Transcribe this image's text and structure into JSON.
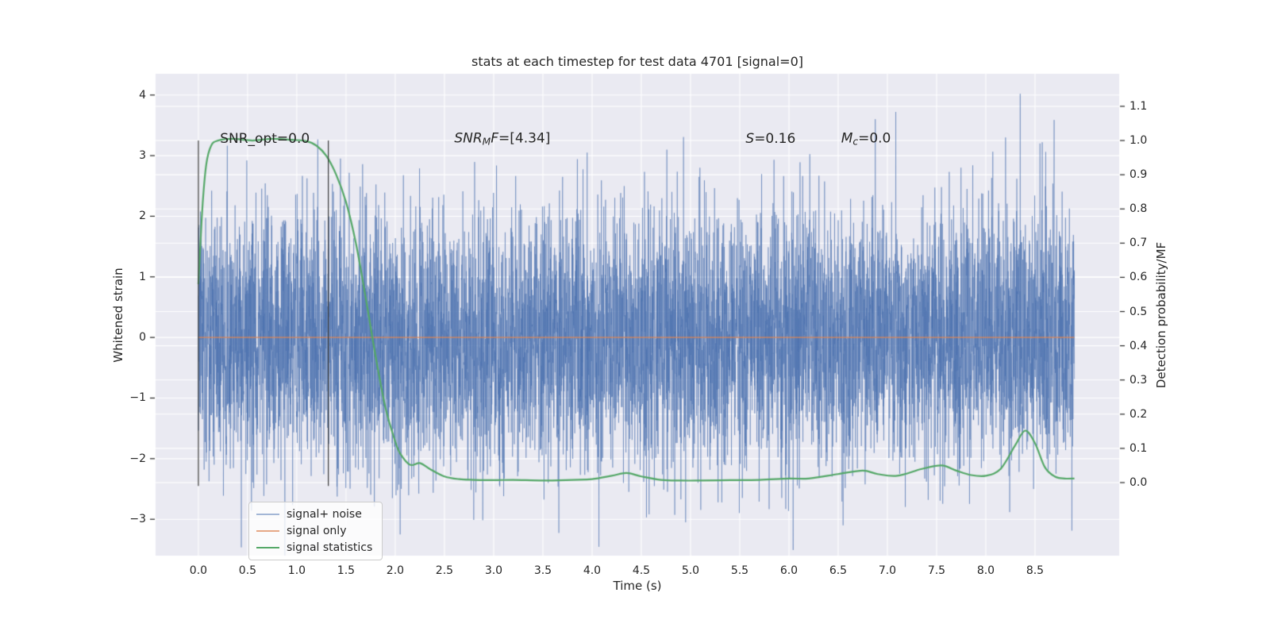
{
  "figure": {
    "background": "#ffffff",
    "axes_background": "#eaeaf2",
    "grid_color": "#ffffff",
    "text_color": "#262626"
  },
  "chart_data": {
    "type": "line",
    "title": "stats at each timestep for test data 4701 [signal=0]",
    "xlabel": "Time (s)",
    "ylabel_left": "Whitened strain",
    "ylabel_right": "Detection probability/MF",
    "xlim": [
      -0.435,
      9.355
    ],
    "ylim_left": [
      -3.6,
      4.35
    ],
    "ylim_right": [
      -0.2135,
      1.195
    ],
    "grid": true,
    "x_ticks": [
      0,
      0.5,
      1,
      1.5,
      2,
      2.5,
      3,
      3.5,
      4,
      4.5,
      5,
      5.5,
      6,
      6.5,
      7,
      7.5,
      8,
      8.5
    ],
    "x_tick_labels": [
      "0.0",
      "0.5",
      "1.0",
      "1.5",
      "2.0",
      "2.5",
      "3.0",
      "3.5",
      "4.0",
      "4.5",
      "5.0",
      "5.5",
      "6.0",
      "6.5",
      "7.0",
      "7.5",
      "8.0",
      "8.5"
    ],
    "left_ticks": [
      -3,
      -2,
      -1,
      0,
      1,
      2,
      3,
      4
    ],
    "left_tick_labels": [
      "−3",
      "−2",
      "−1",
      "0",
      "1",
      "2",
      "3",
      "4"
    ],
    "right_ticks": [
      0,
      0.1,
      0.2,
      0.3,
      0.4,
      0.5,
      0.6,
      0.7,
      0.8,
      0.9,
      1.0,
      1.1
    ],
    "right_tick_labels": [
      "0.0",
      "0.1",
      "0.2",
      "0.3",
      "0.4",
      "0.5",
      "0.6",
      "0.7",
      "0.8",
      "0.9",
      "1.0",
      "1.1"
    ],
    "legend": {
      "position": "lower left"
    },
    "vlines": {
      "xs": [
        0.0,
        1.32
      ],
      "y_min": -2.45,
      "y_max": 3.25,
      "color": "#3a3a3a"
    },
    "annotations": [
      {
        "x": 0.22,
        "y": 3.28,
        "fontsize": 17,
        "segments": [
          {
            "text": "SNR_opt=0.0"
          }
        ]
      },
      {
        "x": 2.6,
        "y": 3.28,
        "fontsize": 17,
        "segments": [
          {
            "text": "SNR",
            "italic": true
          },
          {
            "text": "M",
            "italic": true,
            "sub": true
          },
          {
            "text": "F",
            "italic": true
          },
          {
            "text": "=[4.34]"
          }
        ]
      },
      {
        "x": 5.56,
        "y": 3.28,
        "fontsize": 17,
        "segments": [
          {
            "text": "S",
            "italic": true
          },
          {
            "text": "=0.16"
          }
        ]
      },
      {
        "x": 6.53,
        "y": 3.28,
        "fontsize": 17,
        "segments": [
          {
            "text": "M",
            "italic": true
          },
          {
            "text": "c",
            "italic": true,
            "sub": true
          },
          {
            "text": "=0.0"
          }
        ]
      }
    ],
    "series": [
      {
        "name": "signal+ noise",
        "kind": "noise",
        "axis": "left",
        "color": "#4c72b0",
        "t_start": 0.0,
        "t_end": 8.9,
        "n_samples": 7000,
        "mean": 0.0,
        "std": 1.05,
        "seed": 4701,
        "notable_extremes": [
          [
            2.05,
            -3.25
          ],
          [
            3.95,
            3.05
          ],
          [
            4.95,
            -3.05
          ],
          [
            6.55,
            -3.1
          ],
          [
            8.2,
            3.3
          ],
          [
            8.35,
            4.02
          ],
          [
            8.55,
            3.2
          ]
        ]
      },
      {
        "name": "signal only",
        "kind": "constant",
        "axis": "left",
        "color": "#dd8452",
        "t_start": 0.0,
        "t_end": 8.9,
        "value": 0.0
      },
      {
        "name": "signal statistics",
        "kind": "curve",
        "axis": "right",
        "color": "#55a868",
        "points": [
          [
            0.0,
            0.58
          ],
          [
            0.04,
            0.8
          ],
          [
            0.08,
            0.93
          ],
          [
            0.13,
            0.985
          ],
          [
            0.2,
            1.0
          ],
          [
            0.35,
            1.005
          ],
          [
            0.55,
            1.0
          ],
          [
            0.75,
            1.005
          ],
          [
            0.95,
            1.002
          ],
          [
            1.1,
            0.998
          ],
          [
            1.2,
            0.985
          ],
          [
            1.3,
            0.955
          ],
          [
            1.4,
            0.9
          ],
          [
            1.5,
            0.82
          ],
          [
            1.6,
            0.7
          ],
          [
            1.7,
            0.54
          ],
          [
            1.8,
            0.37
          ],
          [
            1.9,
            0.22
          ],
          [
            2.0,
            0.12
          ],
          [
            2.05,
            0.085
          ],
          [
            2.15,
            0.052
          ],
          [
            2.25,
            0.057
          ],
          [
            2.35,
            0.04
          ],
          [
            2.5,
            0.018
          ],
          [
            2.65,
            0.01
          ],
          [
            2.8,
            0.008
          ],
          [
            3.0,
            0.007
          ],
          [
            3.2,
            0.008
          ],
          [
            3.5,
            0.006
          ],
          [
            3.8,
            0.008
          ],
          [
            4.0,
            0.01
          ],
          [
            4.2,
            0.02
          ],
          [
            4.35,
            0.028
          ],
          [
            4.5,
            0.018
          ],
          [
            4.7,
            0.008
          ],
          [
            4.9,
            0.006
          ],
          [
            5.1,
            0.006
          ],
          [
            5.4,
            0.007
          ],
          [
            5.7,
            0.008
          ],
          [
            6.0,
            0.012
          ],
          [
            6.2,
            0.012
          ],
          [
            6.5,
            0.025
          ],
          [
            6.75,
            0.035
          ],
          [
            6.9,
            0.025
          ],
          [
            7.1,
            0.02
          ],
          [
            7.35,
            0.04
          ],
          [
            7.55,
            0.05
          ],
          [
            7.7,
            0.035
          ],
          [
            7.85,
            0.022
          ],
          [
            8.0,
            0.02
          ],
          [
            8.15,
            0.04
          ],
          [
            8.3,
            0.11
          ],
          [
            8.4,
            0.152
          ],
          [
            8.5,
            0.115
          ],
          [
            8.6,
            0.045
          ],
          [
            8.7,
            0.018
          ],
          [
            8.8,
            0.012
          ],
          [
            8.9,
            0.012
          ]
        ]
      }
    ]
  }
}
